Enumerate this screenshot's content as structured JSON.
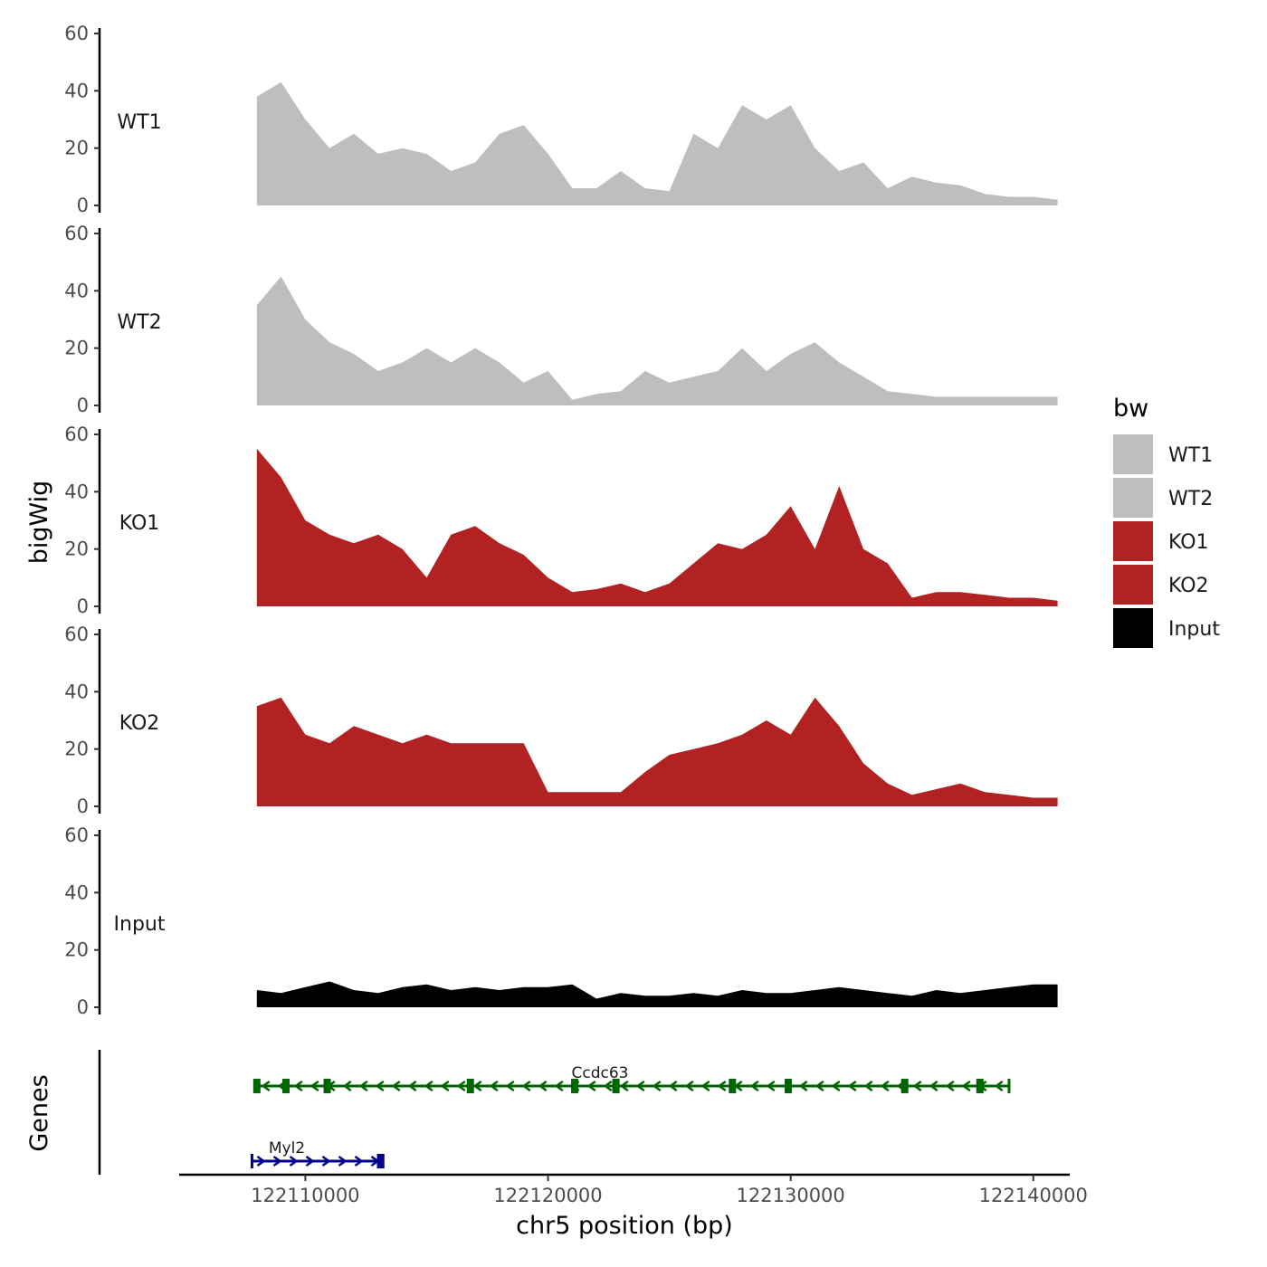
{
  "chart_data": {
    "type": "area",
    "title": "",
    "xlabel": "chr5 position (bp)",
    "ylabel": "bigWig",
    "genes_ylabel": "Genes",
    "xlim": [
      122104800,
      122141500
    ],
    "x_ticks": [
      122110000,
      122120000,
      122130000,
      122140000
    ],
    "x_tick_labels": [
      "122110000",
      "122120000",
      "122130000",
      "122140000"
    ],
    "ylim": [
      0,
      60
    ],
    "y_ticks": [
      0,
      20,
      40,
      60
    ],
    "y_tick_labels": [
      "0",
      "20",
      "40",
      "60"
    ],
    "x_range": [
      122108000,
      122141000
    ],
    "x_step": 1000,
    "legend": {
      "title": "bw",
      "position": "right",
      "entries": [
        {
          "label": "WT1",
          "color": "#bebebe"
        },
        {
          "label": "WT2",
          "color": "#bebebe"
        },
        {
          "label": "KO1",
          "color": "#b22222"
        },
        {
          "label": "KO2",
          "color": "#b22222"
        },
        {
          "label": "Input",
          "color": "#000000"
        }
      ]
    },
    "series": [
      {
        "name": "WT1",
        "color": "#bebebe",
        "values": [
          38,
          43,
          30,
          20,
          25,
          18,
          20,
          18,
          12,
          15,
          25,
          28,
          18,
          6,
          6,
          12,
          6,
          5,
          25,
          20,
          35,
          30,
          35,
          20,
          12,
          15,
          6,
          10,
          8,
          7,
          4,
          3,
          3,
          2
        ]
      },
      {
        "name": "WT2",
        "color": "#bebebe",
        "values": [
          35,
          45,
          30,
          22,
          18,
          12,
          15,
          20,
          15,
          20,
          15,
          8,
          12,
          2,
          4,
          5,
          12,
          8,
          10,
          12,
          20,
          12,
          18,
          22,
          15,
          10,
          5,
          4,
          3,
          3,
          3,
          3,
          3,
          3
        ]
      },
      {
        "name": "KO1",
        "color": "#b22222",
        "values": [
          55,
          45,
          30,
          25,
          22,
          25,
          20,
          10,
          25,
          28,
          22,
          18,
          10,
          5,
          6,
          8,
          5,
          8,
          15,
          22,
          20,
          25,
          35,
          20,
          42,
          20,
          15,
          3,
          5,
          5,
          4,
          3,
          3,
          2
        ]
      },
      {
        "name": "KO2",
        "color": "#b22222",
        "values": [
          35,
          38,
          25,
          22,
          28,
          25,
          22,
          25,
          22,
          22,
          22,
          22,
          5,
          5,
          5,
          5,
          12,
          18,
          20,
          22,
          25,
          30,
          25,
          38,
          28,
          15,
          8,
          4,
          6,
          8,
          5,
          4,
          3,
          3
        ]
      },
      {
        "name": "Input",
        "color": "#000000",
        "values": [
          6,
          5,
          7,
          9,
          6,
          5,
          7,
          8,
          6,
          7,
          6,
          7,
          7,
          8,
          3,
          5,
          4,
          4,
          5,
          4,
          6,
          5,
          5,
          6,
          7,
          6,
          5,
          4,
          6,
          5,
          6,
          7,
          8,
          8
        ]
      }
    ],
    "genes": [
      {
        "name": "Ccdc63",
        "strand": "-",
        "start": 122108000,
        "end": 122139000,
        "color": "#006400",
        "exons": [
          122108000,
          122109200,
          122110900,
          122116800,
          122121100,
          122122800,
          122127600,
          122129900,
          122134700,
          122137800
        ]
      },
      {
        "name": "Myl2",
        "strand": "+",
        "start": 122107800,
        "end": 122113200,
        "color": "#00008b",
        "exons": [
          122113100
        ]
      }
    ]
  }
}
